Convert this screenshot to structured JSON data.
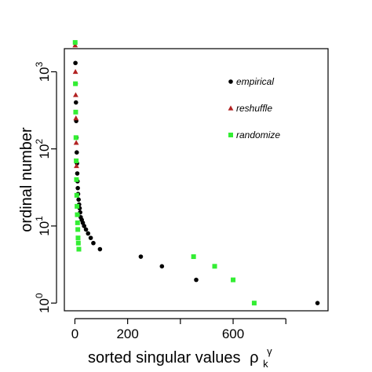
{
  "chart_data": {
    "type": "scatter",
    "title": "",
    "xlabel": "sorted singular values",
    "xlabel_symbol": "ρ",
    "xlabel_sub": "k",
    "xlabel_sup": "γ",
    "ylabel": "ordinal number",
    "xlim": [
      -40,
      960
    ],
    "ylim_log10": [
      -0.1,
      3.3
    ],
    "y_scale": "log10",
    "x_ticks": [
      0,
      200,
      600
    ],
    "x_tick_marks": [
      0,
      200,
      400,
      600,
      800
    ],
    "y_ticks": [
      {
        "value": 1,
        "base": "10",
        "exp": "0"
      },
      {
        "value": 10,
        "base": "10",
        "exp": "1"
      },
      {
        "value": 100,
        "base": "10",
        "exp": "2"
      },
      {
        "value": 1000,
        "base": "10",
        "exp": "3"
      }
    ],
    "grid": false,
    "legend_position": "top-right",
    "series": [
      {
        "name": "empirical",
        "marker": "circle",
        "color": "#000000",
        "x": [
          920,
          460,
          330,
          250,
          95,
          70,
          60,
          50,
          42,
          35,
          30,
          26,
          22,
          20,
          18,
          16,
          14,
          12,
          11,
          10,
          9,
          8,
          7,
          6,
          5,
          4,
          3,
          2,
          1
        ],
        "y": [
          1,
          2,
          3,
          4,
          5,
          6,
          7,
          8,
          9,
          10,
          11,
          12,
          13,
          15,
          17,
          19,
          22,
          26,
          31,
          38,
          48,
          65,
          90,
          140,
          230,
          400,
          700,
          1300,
          2400
        ]
      },
      {
        "name": "reshuffle",
        "marker": "triangle",
        "color": "#b22222",
        "x": [
          6,
          5,
          4,
          3,
          2,
          1
        ],
        "y": [
          60,
          120,
          250,
          500,
          1000,
          2200
        ]
      },
      {
        "name": "randomize",
        "marker": "square",
        "color": "#33ee33",
        "x": [
          680,
          600,
          530,
          450,
          15,
          13,
          12,
          11,
          10,
          9,
          8,
          7,
          6,
          5,
          4,
          3,
          2,
          1
        ],
        "y": [
          1,
          2,
          3,
          4,
          5,
          6,
          7,
          9,
          11,
          14,
          18,
          25,
          40,
          70,
          140,
          300,
          700,
          2400
        ]
      }
    ]
  }
}
